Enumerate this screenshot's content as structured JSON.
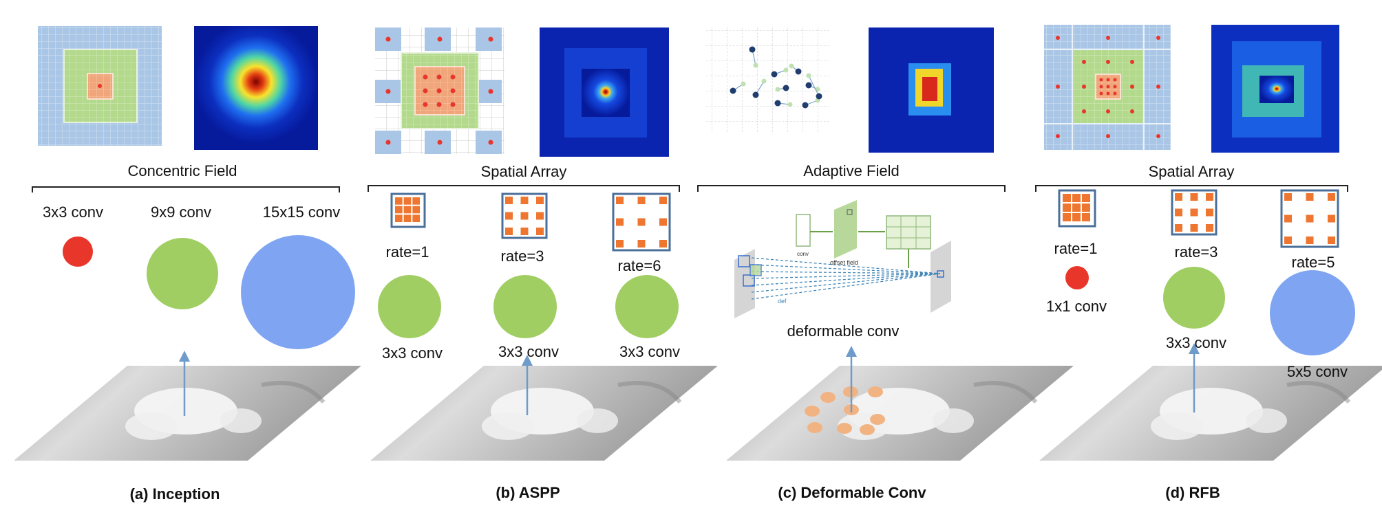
{
  "panels": [
    {
      "header": "Concentric Field",
      "caption": "(a) Inception",
      "labels": [
        "3x3 conv",
        "9x9 conv",
        "15x15 conv"
      ]
    },
    {
      "header": "Spatial Array",
      "caption": "(b) ASPP",
      "rates": [
        "rate=1",
        "rate=3",
        "rate=6"
      ],
      "labels": [
        "3x3 conv",
        "3x3 conv",
        "3x3 conv"
      ]
    },
    {
      "header": "Adaptive Field",
      "caption": "(c) Deformable Conv",
      "labels": [
        "deformable conv"
      ],
      "inset_labels": [
        "conv",
        "offset field",
        "def"
      ]
    },
    {
      "header": "Spatial Array",
      "caption": "(d) RFB",
      "rates": [
        "rate=1",
        "rate=3",
        "rate=5"
      ],
      "labels": [
        "1x1 conv",
        "3x3 conv",
        "5x5 conv"
      ]
    }
  ],
  "colors": {
    "small_field": "#e8362b",
    "medium_field": "#a1ce63",
    "large_field": "#7fa5f2",
    "arrow": "#6e9bc9",
    "kernel_cell": "#ee7630",
    "kernel_frame": "#4a6f9a",
    "sample_point": "#f2b383"
  }
}
